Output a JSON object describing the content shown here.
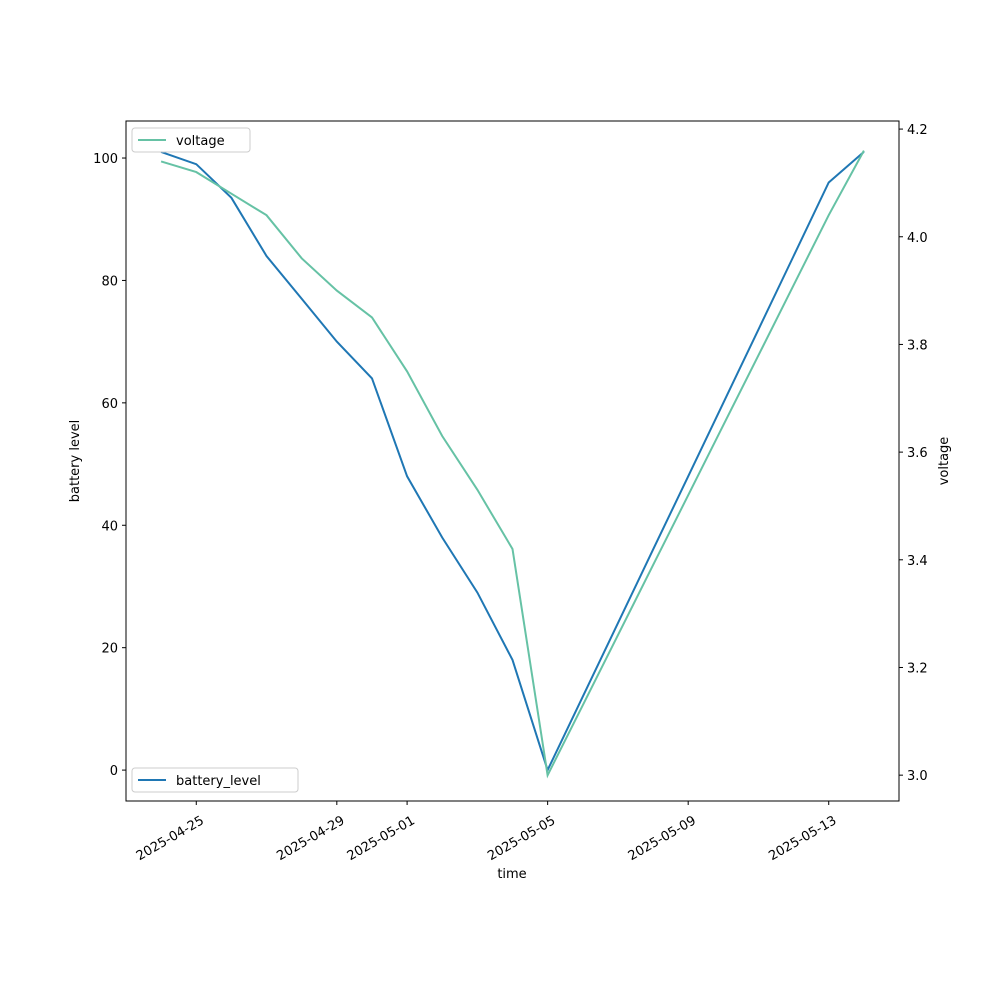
{
  "chart_data": {
    "type": "line",
    "x_label": "time",
    "y_label": "battery level",
    "y2_label": "voltage",
    "x": [
      "2025-04-24",
      "2025-04-25",
      "2025-04-26",
      "2025-04-27",
      "2025-04-28",
      "2025-04-29",
      "2025-04-30",
      "2025-05-01",
      "2025-05-02",
      "2025-05-03",
      "2025-05-04",
      "2025-05-05",
      "2025-05-06",
      "2025-05-07",
      "2025-05-08",
      "2025-05-09",
      "2025-05-10",
      "2025-05-11",
      "2025-05-12",
      "2025-05-13",
      "2025-05-14"
    ],
    "series": [
      {
        "name": "battery_level",
        "color": "#1f77b4",
        "axis": "y",
        "legend": "lower left",
        "values": [
          101,
          99,
          93.5,
          84,
          77,
          70,
          64,
          48,
          38,
          29,
          18,
          0,
          12,
          24,
          36,
          48,
          60,
          72,
          84,
          96,
          101
        ]
      },
      {
        "name": "voltage",
        "color": "#66c2a5",
        "axis": "y2",
        "legend": "upper left",
        "values": [
          4.14,
          4.12,
          4.08,
          4.04,
          3.96,
          3.9,
          3.85,
          3.75,
          3.63,
          3.53,
          3.42,
          3.0,
          3.13,
          3.26,
          3.39,
          3.52,
          3.65,
          3.78,
          3.91,
          4.04,
          4.16
        ]
      }
    ],
    "xlim": [
      "2025-04-23",
      "2025-05-15"
    ],
    "xticks": [
      "2025-04-25",
      "2025-04-29",
      "2025-05-01",
      "2025-05-05",
      "2025-05-09",
      "2025-05-13"
    ],
    "ylim": [
      -5.05,
      106.05
    ],
    "yticks": [
      0,
      20,
      40,
      60,
      80,
      100
    ],
    "y2lim": [
      2.952,
      4.215
    ],
    "y2ticks": [
      {
        "value": 3.0,
        "label": "3.0"
      },
      3.2,
      3.4,
      3.6,
      3.8,
      {
        "value": 4.0,
        "label": "4.0"
      },
      4.2
    ]
  }
}
